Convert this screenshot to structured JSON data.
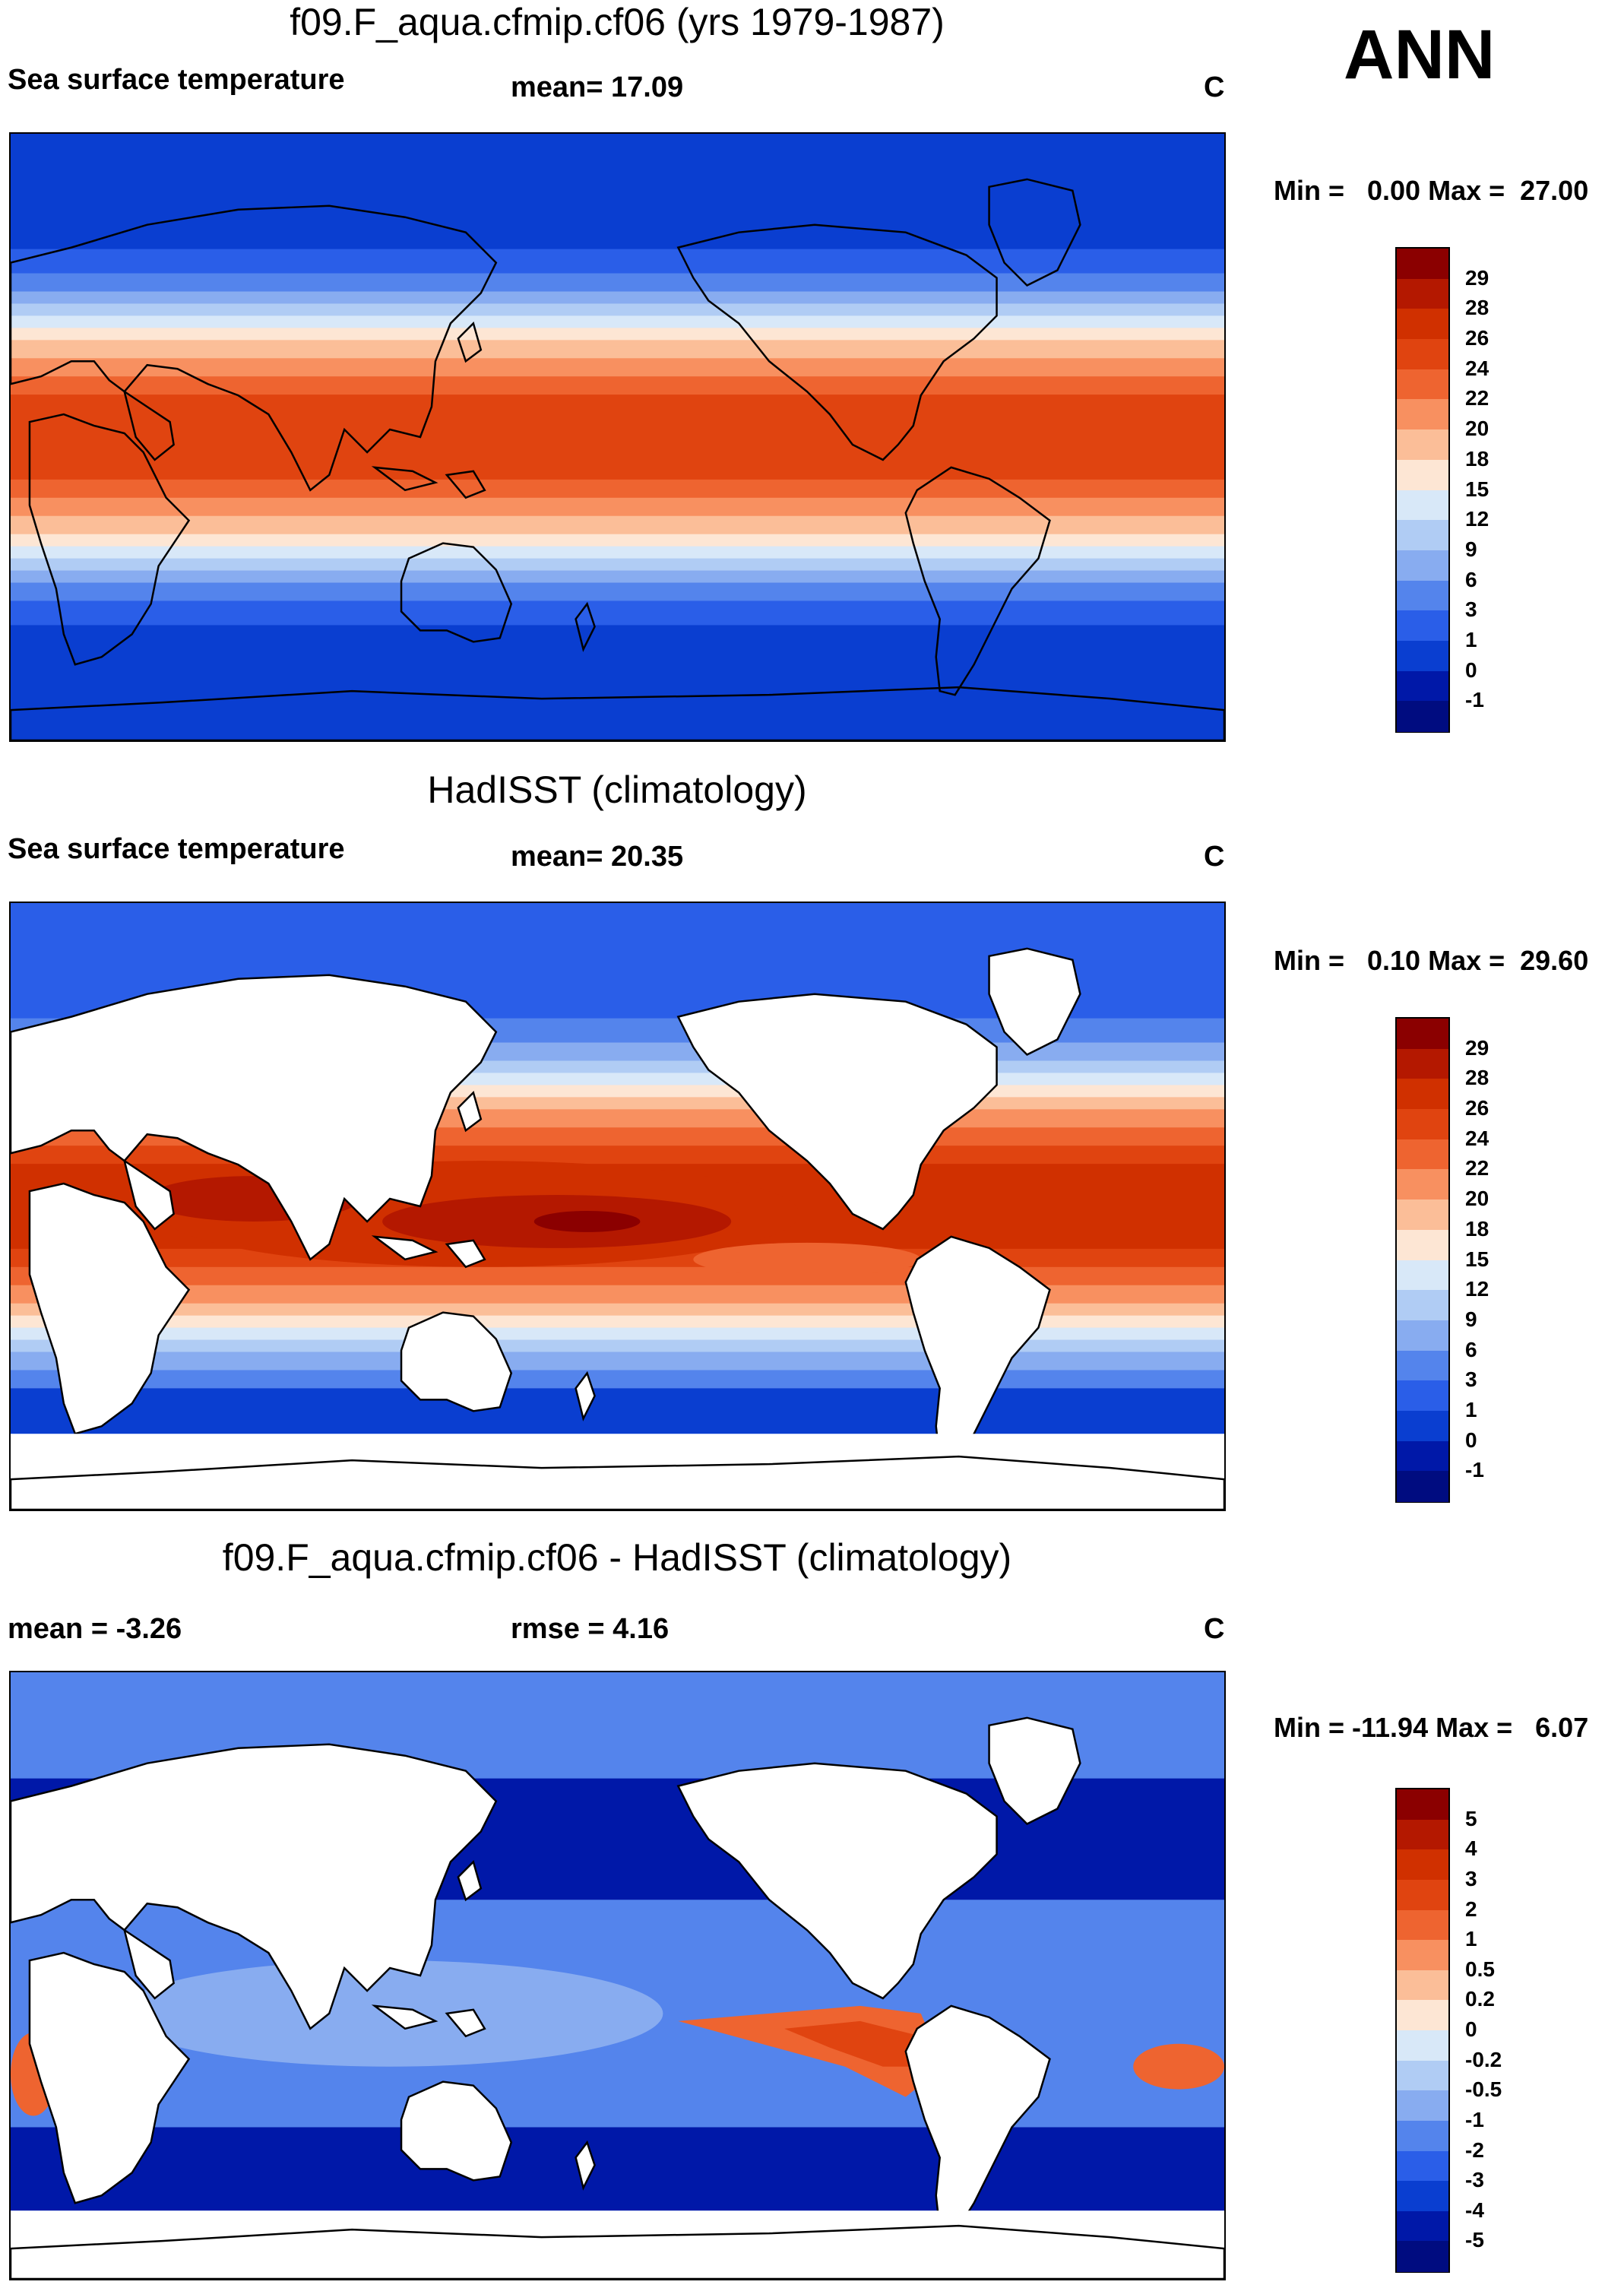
{
  "season": "ANN",
  "units": "C",
  "panels": [
    {
      "title": "f09.F_aqua.cfmip.cf06 (yrs 1979-1987)",
      "left_label": "Sea surface temperature",
      "center_label": "mean=  17.09",
      "units": "C",
      "minmax": "Min =   0.00 Max =  27.00",
      "kind": "model",
      "colorbar_labels": [
        "29",
        "28",
        "26",
        "24",
        "22",
        "20",
        "18",
        "15",
        "12",
        "9",
        "6",
        "3",
        "1",
        "0",
        "-1"
      ]
    },
    {
      "title": "HadISST (climatology)",
      "left_label": "Sea surface temperature",
      "center_label": "mean=  20.35",
      "units": "C",
      "minmax": "Min =   0.10 Max =  29.60",
      "kind": "obs",
      "colorbar_labels": [
        "29",
        "28",
        "26",
        "24",
        "22",
        "20",
        "18",
        "15",
        "12",
        "9",
        "6",
        "3",
        "1",
        "0",
        "-1"
      ]
    },
    {
      "title": "f09.F_aqua.cfmip.cf06 - HadISST (climatology)",
      "left_label": "mean =  -3.26",
      "center_label": "rmse =    4.16",
      "units": "C",
      "minmax": "Min = -11.94 Max =   6.07",
      "kind": "diff",
      "colorbar_labels": [
        "5",
        "4",
        "3",
        "2",
        "1",
        "0.5",
        "0.2",
        "0",
        "-0.2",
        "-0.5",
        "-1",
        "-2",
        "-3",
        "-4",
        "-5"
      ]
    }
  ],
  "palette": [
    "#8b0000",
    "#b41800",
    "#d03000",
    "#e04410",
    "#ee6430",
    "#f89060",
    "#fbbe98",
    "#fde6d4",
    "#d8e8f8",
    "#b0ccf4",
    "#88acf0",
    "#5484ec",
    "#2a5ee8",
    "#0a3ed0",
    "#0018a8",
    "#000c80"
  ]
}
